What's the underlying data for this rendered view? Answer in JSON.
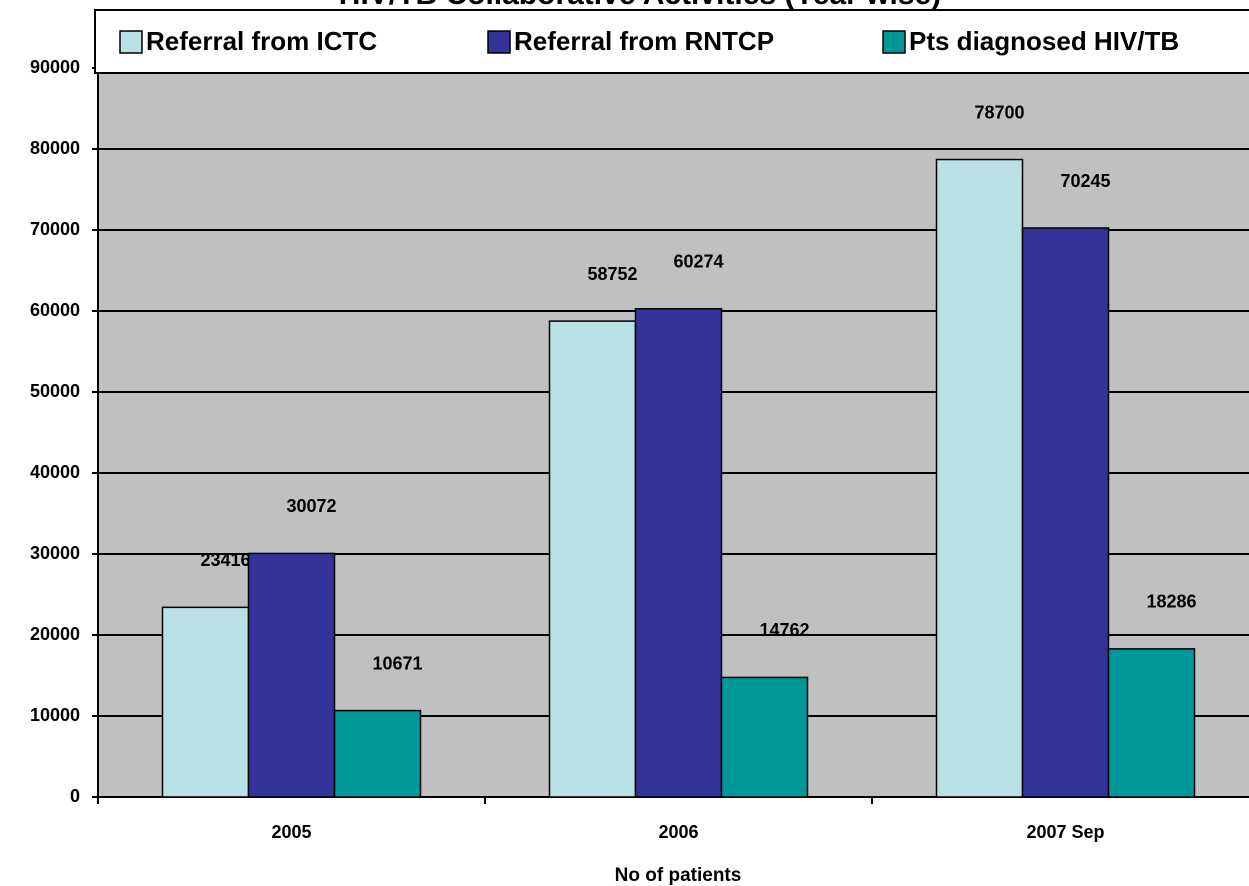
{
  "chart_data": {
    "type": "bar",
    "title": "HIV/TB Collaborative Activities (Year wise)",
    "x_label": "No of patients",
    "categories": [
      "2005",
      "2006",
      "2007 Sep"
    ],
    "series": [
      {
        "name": "Referral from ICTC",
        "color": "#b9e1e4",
        "values": [
          23416,
          58752,
          78700
        ]
      },
      {
        "name": "Referral from RNTCP",
        "color": "#333399",
        "values": [
          30072,
          60274,
          70245
        ]
      },
      {
        "name": "Pts diagnosed HIV/TB",
        "color": "#009999",
        "values": [
          10671,
          14762,
          18286
        ]
      }
    ],
    "ylim": [
      0,
      90000
    ],
    "yticks": [
      0,
      10000,
      20000,
      30000,
      40000,
      50000,
      60000,
      70000,
      80000,
      90000
    ],
    "grid": true,
    "legend": "top"
  }
}
